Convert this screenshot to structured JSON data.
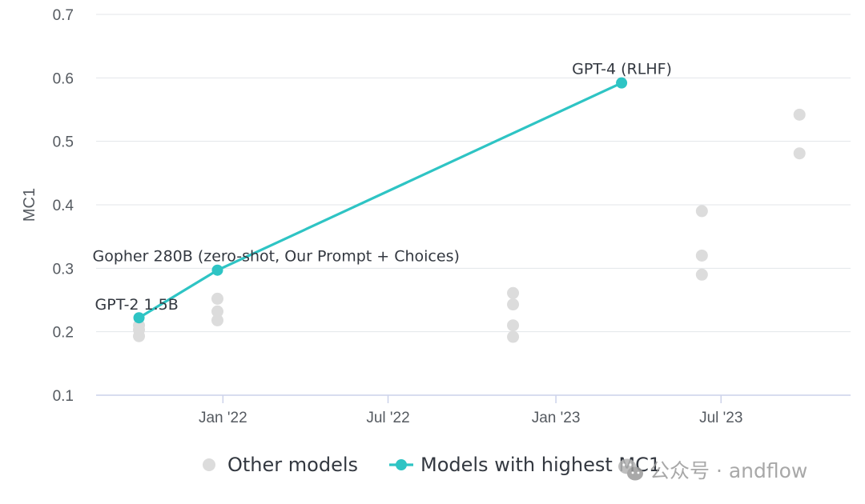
{
  "chart_data": {
    "type": "scatter",
    "title": "",
    "ylabel": "MC1",
    "xlabel": "",
    "ylim": [
      0.1,
      0.7
    ],
    "yticks": [
      0.1,
      0.2,
      0.3,
      0.4,
      0.5,
      0.6,
      0.7
    ],
    "xlim": [
      "2021-08-15",
      "2023-11-20"
    ],
    "xticks": [
      {
        "date": "2022-01-01",
        "label": "Jan '22"
      },
      {
        "date": "2022-07-01",
        "label": "Jul '22"
      },
      {
        "date": "2023-01-01",
        "label": "Jan '23"
      },
      {
        "date": "2023-07-01",
        "label": "Jul '23"
      }
    ],
    "grid": true,
    "legend_position": "bottom",
    "series": [
      {
        "name": "Other models",
        "color": "#dcdcdc",
        "marker": "circle",
        "line": false,
        "points": [
          {
            "x": "2021-10-01",
            "y": 0.21
          },
          {
            "x": "2021-10-01",
            "y": 0.203
          },
          {
            "x": "2021-10-01",
            "y": 0.193
          },
          {
            "x": "2021-12-26",
            "y": 0.252
          },
          {
            "x": "2021-12-26",
            "y": 0.232
          },
          {
            "x": "2021-12-26",
            "y": 0.218
          },
          {
            "x": "2022-11-15",
            "y": 0.261
          },
          {
            "x": "2022-11-15",
            "y": 0.243
          },
          {
            "x": "2022-11-15",
            "y": 0.21
          },
          {
            "x": "2022-11-15",
            "y": 0.192
          },
          {
            "x": "2023-06-10",
            "y": 0.39
          },
          {
            "x": "2023-06-10",
            "y": 0.32
          },
          {
            "x": "2023-06-10",
            "y": 0.29
          },
          {
            "x": "2023-09-25",
            "y": 0.542
          },
          {
            "x": "2023-09-25",
            "y": 0.481
          }
        ]
      },
      {
        "name": "Models with highest MC1",
        "color": "#2ec4c4",
        "marker": "circle",
        "line": true,
        "points": [
          {
            "x": "2021-10-01",
            "y": 0.222,
            "label": "GPT-2 1.5B"
          },
          {
            "x": "2021-12-26",
            "y": 0.297,
            "label": "Gopher 280B (zero-shot, Our Prompt + Choices)"
          },
          {
            "x": "2023-03-14",
            "y": 0.592,
            "label": "GPT-4 (RLHF)"
          }
        ]
      }
    ]
  },
  "watermark": {
    "text": "公众号 · andflow",
    "icon": "wechat-icon"
  }
}
